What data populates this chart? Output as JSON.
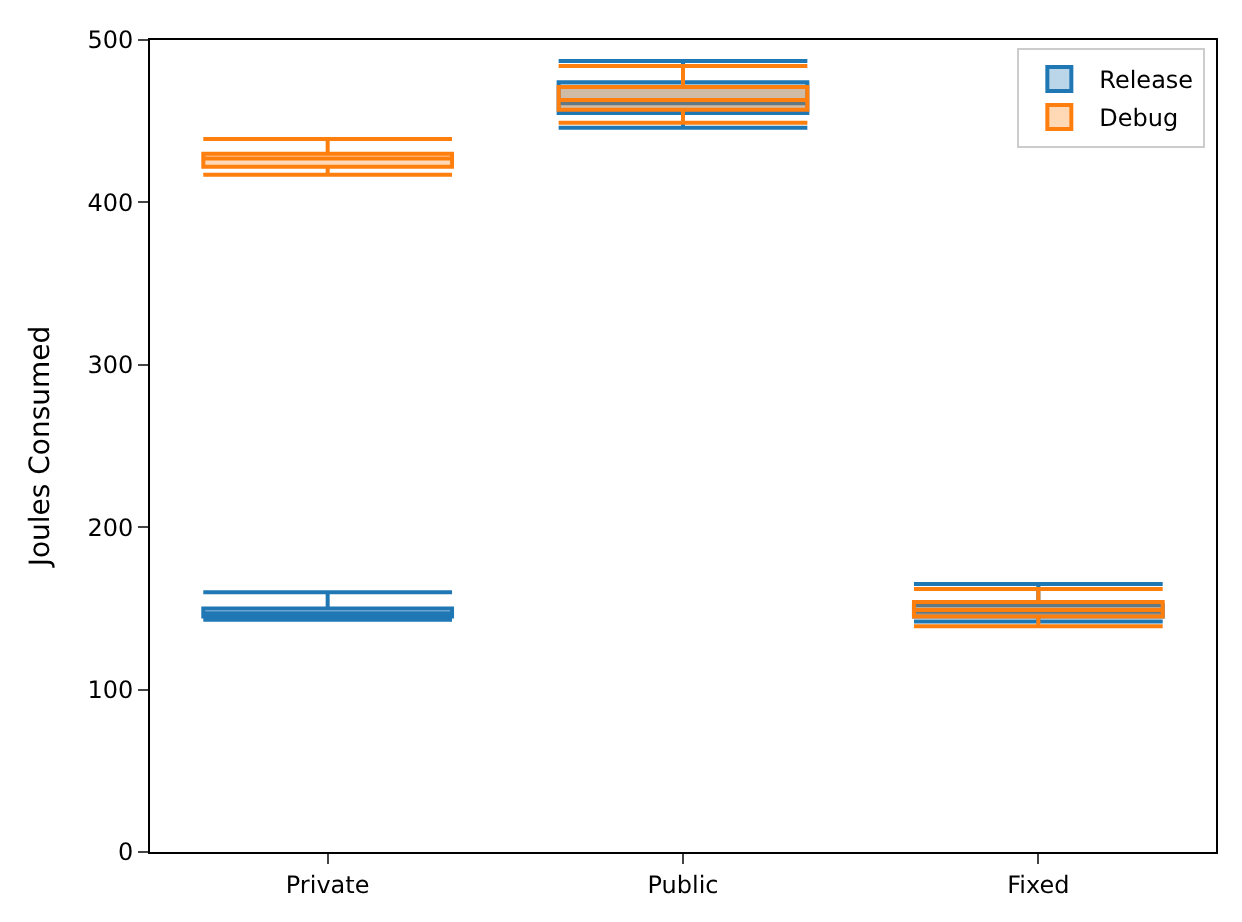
{
  "chart_data": {
    "type": "box",
    "ylabel": "Joules Consumed",
    "categories": [
      "Private",
      "Public",
      "Fixed"
    ],
    "ylim": [
      0,
      500
    ],
    "yticks": [
      0,
      100,
      200,
      300,
      400,
      500
    ],
    "legend": "top right",
    "series": [
      {
        "name": "Release",
        "color": "#1f77b4",
        "boxes": [
          {
            "low": 143,
            "q1": 145,
            "median": 147,
            "q3": 150,
            "high": 160
          },
          {
            "low": 446,
            "q1": 455,
            "median": 461,
            "q3": 474,
            "high": 487
          },
          {
            "low": 142,
            "q1": 145,
            "median": 148,
            "q3": 152,
            "high": 165
          }
        ]
      },
      {
        "name": "Debug",
        "color": "#ff7f0e",
        "boxes": [
          {
            "low": 417,
            "q1": 422,
            "median": 427,
            "q3": 430,
            "high": 439
          },
          {
            "low": 449,
            "q1": 457,
            "median": 463,
            "q3": 471,
            "high": 484
          },
          {
            "low": 139,
            "q1": 145,
            "median": 149,
            "q3": 154,
            "high": 162
          }
        ]
      }
    ]
  }
}
